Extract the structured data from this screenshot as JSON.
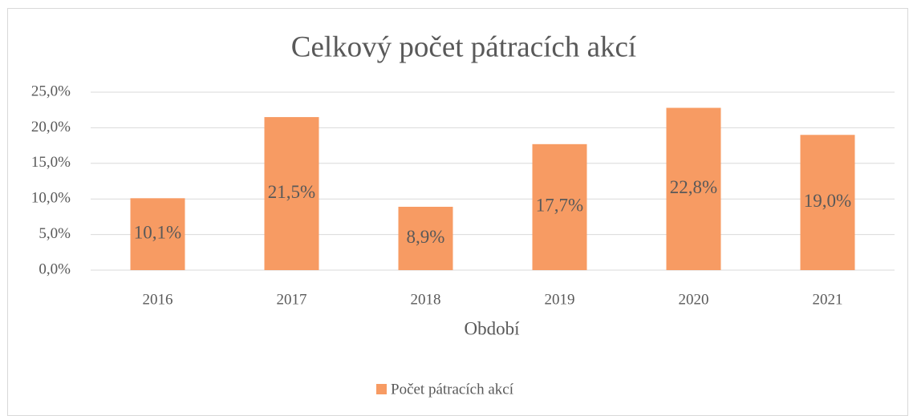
{
  "chart_data": {
    "type": "bar",
    "title": "Celkový počet  pátracích akcí",
    "x_label": "Období",
    "categories": [
      "2016",
      "2017",
      "2018",
      "2019",
      "2020",
      "2021"
    ],
    "series": [
      {
        "name": "Počet pátracích akcí",
        "color": "#f79b63",
        "values": [
          10.1,
          21.5,
          8.9,
          17.7,
          22.8,
          19.0
        ],
        "value_labels": [
          "10,1%",
          "21,5%",
          "8,9%",
          "17,7%",
          "22,8%",
          "19,0%"
        ]
      }
    ],
    "ylim": [
      0,
      25
    ],
    "yticks": [
      {
        "value": 0,
        "label": "0,0%"
      },
      {
        "value": 5,
        "label": "5,0%"
      },
      {
        "value": 10,
        "label": "10,0%"
      },
      {
        "value": 15,
        "label": "15,0%"
      },
      {
        "value": 20,
        "label": "20,0%"
      },
      {
        "value": 25,
        "label": "25,0%"
      }
    ],
    "grid": true,
    "legend": "bottom"
  }
}
